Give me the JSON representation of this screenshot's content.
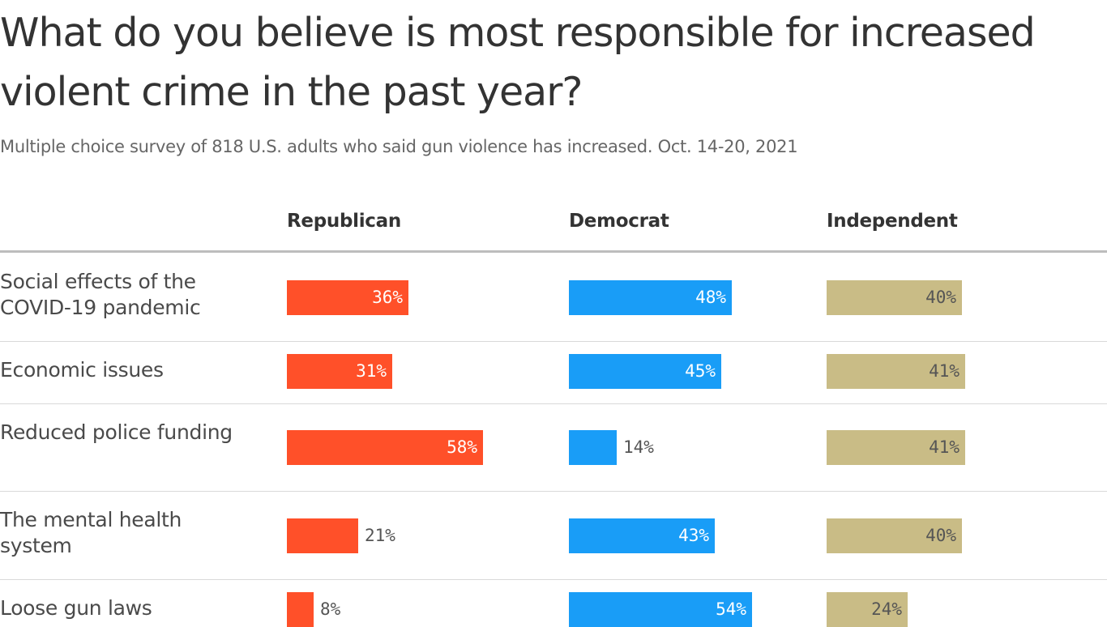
{
  "title": "What do you believe is most responsible for increased violent crime in the past year?",
  "subtitle": "Multiple choice survey of 818 U.S. adults who said gun violence has increased. Oct. 14-20, 2021",
  "chart_data": {
    "type": "bar",
    "value_suffix": "%",
    "categories": [
      "Social effects of the COVID-19 pandemic",
      "Economic issues",
      "Reduced police funding",
      "The mental health system",
      "Loose gun laws"
    ],
    "series": [
      {
        "name": "Republican",
        "color": "#ff5029",
        "text_color": "#ffffff",
        "values": [
          36,
          31,
          58,
          21,
          8
        ]
      },
      {
        "name": "Democrat",
        "color": "#199df7",
        "text_color": "#ffffff",
        "values": [
          48,
          45,
          14,
          43,
          54
        ]
      },
      {
        "name": "Independent",
        "color": "#c9bc86",
        "text_color": "#555555",
        "values": [
          40,
          41,
          41,
          40,
          24
        ]
      }
    ]
  }
}
